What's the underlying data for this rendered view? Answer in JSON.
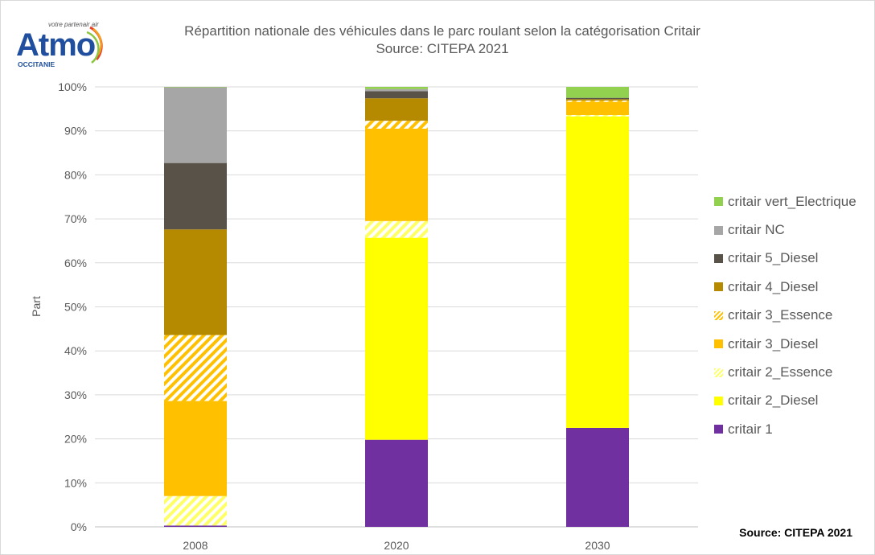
{
  "logo": {
    "word": "Atmo",
    "tag": "votre partenair air",
    "region": "OCCITANIE"
  },
  "title_lines": [
    "Répartition nationale des véhicules dans le parc roulant selon la catégorisation Critair",
    "Source: CITEPA 2021"
  ],
  "footer_source": "Source: CITEPA 2021",
  "chart_data": {
    "type": "bar",
    "stacked": true,
    "percent": true,
    "title": "Répartition nationale des véhicules dans le parc roulant selon la catégorisation Critair",
    "subtitle": "Source: CITEPA 2021",
    "xlabel": "",
    "ylabel": "Part",
    "ylim": [
      0,
      100
    ],
    "y_ticks": [
      "0%",
      "10%",
      "20%",
      "30%",
      "40%",
      "50%",
      "60%",
      "70%",
      "80%",
      "90%",
      "100%"
    ],
    "grid": true,
    "legend_position": "right",
    "categories": [
      "2008",
      "2020",
      "2030"
    ],
    "series": [
      {
        "name": "critair 1",
        "color": "#7030a0",
        "pattern": "solid",
        "values": [
          0.3,
          19.8,
          22.5
        ]
      },
      {
        "name": "critair 2_Diesel",
        "color": "#ffff00",
        "pattern": "solid",
        "values": [
          0,
          45.9,
          70.8
        ]
      },
      {
        "name": "critair 2_Essence",
        "color": "#ffff66",
        "pattern": "hatch",
        "values": [
          6.7,
          3.8,
          0.3
        ]
      },
      {
        "name": "critair 3_Diesel",
        "color": "#ffc000",
        "pattern": "solid",
        "values": [
          21.6,
          21.0,
          3.0
        ]
      },
      {
        "name": "critair 3_Essence",
        "color": "#ffc000",
        "pattern": "hatch",
        "values": [
          15.0,
          1.8,
          0.3
        ]
      },
      {
        "name": "critair 4_Diesel",
        "color": "#b68a00",
        "pattern": "solid",
        "values": [
          24.0,
          5.1,
          0.3
        ]
      },
      {
        "name": "critair 5_Diesel",
        "color": "#595249",
        "pattern": "solid",
        "values": [
          15.1,
          1.6,
          0.3
        ]
      },
      {
        "name": "critair NC",
        "color": "#a6a6a6",
        "pattern": "solid",
        "values": [
          17.2,
          0.5,
          0
        ]
      },
      {
        "name": "critair vert_Electrique",
        "color": "#92d050",
        "pattern": "solid",
        "values": [
          0.1,
          0.5,
          2.5
        ]
      }
    ]
  }
}
